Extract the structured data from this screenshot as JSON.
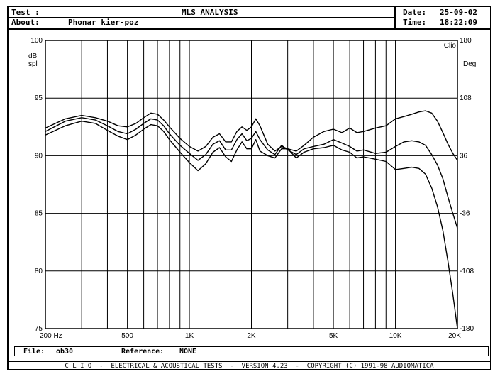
{
  "header": {
    "test_label": "Test :",
    "title": "MLS ANALYSIS",
    "date_label": "Date:",
    "date_value": "25-09-02",
    "about_label": "About:",
    "about_value": "Phonar kier-poz",
    "time_label": "Time:",
    "time_value": "18:22:09"
  },
  "file_bar": {
    "file_label": "File:",
    "file_value": "ob30",
    "reference_label": "Reference:",
    "reference_value": "NONE"
  },
  "footer": {
    "text": "C L I O  -  ELECTRICAL & ACOUSTICAL TESTS  -  VERSION 4.23  -  COPYRIGHT (C) 1991-98 AUDIOMATICA"
  },
  "chart_data": {
    "type": "line",
    "corner_label": "Clio",
    "xscale": "log",
    "xlim": [
      200,
      20000
    ],
    "ylim_left": [
      75,
      100
    ],
    "ylim_right": [
      -180,
      180
    ],
    "left_unit": [
      "dB",
      "spl"
    ],
    "right_unit": "Deg",
    "x_ticks": [
      {
        "value": 200,
        "label": "200 Hz"
      },
      {
        "value": 500,
        "label": "500"
      },
      {
        "value": 1000,
        "label": "1K"
      },
      {
        "value": 2000,
        "label": "2K"
      },
      {
        "value": 5000,
        "label": "5K"
      },
      {
        "value": 10000,
        "label": "10K"
      },
      {
        "value": 20000,
        "label": "20K"
      }
    ],
    "y_left_ticks": [
      100,
      95,
      90,
      85,
      80,
      75
    ],
    "y_right_ticks": [
      180,
      108,
      36,
      -36,
      -108,
      -180
    ],
    "grid": true,
    "series": [
      {
        "x": [
          200,
          250,
          300,
          350,
          400,
          450,
          500,
          550,
          600,
          650,
          700,
          750,
          800,
          900,
          1000,
          1100,
          1200,
          1300,
          1400,
          1500,
          1600,
          1700,
          1800,
          1900,
          2000,
          2100,
          2200,
          2400,
          2600,
          2800,
          3000,
          3300,
          3600,
          4000,
          4500,
          5000,
          5500,
          6000,
          6500,
          7000,
          8000,
          9000,
          10000,
          11000,
          12000,
          13000,
          14000,
          15000,
          16000,
          17000,
          18000,
          19000,
          20000
        ],
        "y": [
          92.4,
          93.2,
          93.5,
          93.3,
          93.0,
          92.6,
          92.5,
          92.8,
          93.3,
          93.7,
          93.6,
          93.1,
          92.5,
          91.5,
          90.8,
          90.4,
          90.8,
          91.6,
          91.9,
          91.2,
          91.2,
          92.1,
          92.5,
          92.2,
          92.5,
          93.2,
          92.6,
          91.0,
          90.4,
          90.8,
          90.6,
          90.4,
          90.9,
          91.6,
          92.1,
          92.3,
          92.0,
          92.4,
          92.0,
          92.1,
          92.4,
          92.6,
          93.2,
          93.4,
          93.6,
          93.8,
          93.9,
          93.7,
          93.0,
          92.0,
          91.0,
          90.2,
          89.6
        ]
      },
      {
        "x": [
          200,
          250,
          300,
          350,
          400,
          450,
          500,
          550,
          600,
          650,
          700,
          750,
          800,
          900,
          1000,
          1100,
          1200,
          1300,
          1400,
          1500,
          1600,
          1700,
          1800,
          1900,
          2000,
          2100,
          2200,
          2400,
          2600,
          2800,
          3000,
          3300,
          3600,
          4000,
          4500,
          5000,
          5500,
          6000,
          6500,
          7000,
          8000,
          9000,
          10000,
          11000,
          12000,
          13000,
          14000,
          15000,
          16000,
          17000,
          18000,
          19000,
          20000
        ],
        "y": [
          92.1,
          93.0,
          93.3,
          93.1,
          92.6,
          92.1,
          91.9,
          92.3,
          92.8,
          93.2,
          93.1,
          92.6,
          91.9,
          90.9,
          90.2,
          89.6,
          90.1,
          91.0,
          91.3,
          90.5,
          90.5,
          91.4,
          91.9,
          91.3,
          91.5,
          92.1,
          91.4,
          90.5,
          90.1,
          90.9,
          90.5,
          90.1,
          90.6,
          90.8,
          91.0,
          91.4,
          91.1,
          90.8,
          90.4,
          90.5,
          90.2,
          90.3,
          90.8,
          91.2,
          91.3,
          91.2,
          90.9,
          90.1,
          89.2,
          88.0,
          86.4,
          85.0,
          83.7
        ]
      },
      {
        "x": [
          200,
          250,
          300,
          350,
          400,
          450,
          500,
          550,
          600,
          650,
          700,
          750,
          800,
          900,
          1000,
          1100,
          1200,
          1300,
          1400,
          1500,
          1600,
          1700,
          1800,
          1900,
          2000,
          2100,
          2200,
          2400,
          2600,
          2800,
          3000,
          3300,
          3600,
          4000,
          4500,
          5000,
          5500,
          6000,
          6500,
          7000,
          8000,
          9000,
          10000,
          11000,
          12000,
          13000,
          14000,
          15000,
          16000,
          17000,
          18000,
          19000,
          20000
        ],
        "y": [
          91.8,
          92.6,
          93.0,
          92.8,
          92.2,
          91.7,
          91.4,
          91.8,
          92.3,
          92.7,
          92.6,
          92.1,
          91.4,
          90.3,
          89.4,
          88.7,
          89.3,
          90.3,
          90.7,
          89.9,
          89.5,
          90.5,
          91.2,
          90.6,
          90.6,
          91.4,
          90.4,
          90.0,
          89.8,
          90.6,
          90.6,
          89.8,
          90.3,
          90.6,
          90.7,
          90.9,
          90.5,
          90.3,
          89.8,
          89.9,
          89.7,
          89.5,
          88.8,
          88.9,
          89.0,
          88.9,
          88.4,
          87.2,
          85.6,
          83.5,
          80.8,
          78.0,
          75.0
        ]
      }
    ]
  }
}
